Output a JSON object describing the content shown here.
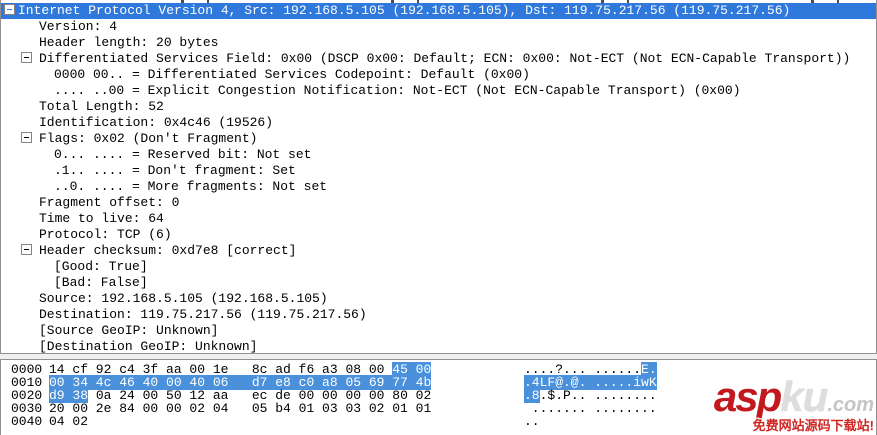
{
  "colors": {
    "selection_bg": "#2f78dc",
    "selection_fg": "#ffffff",
    "hex_highlight_bg": "#4a90da",
    "hex_highlight_fg": "#ffffff",
    "pane_border": "#909090",
    "watermark_red": "#c2191e"
  },
  "tree": {
    "rows": [
      {
        "depth": 0,
        "expanded": true,
        "selected": true,
        "text": "Internet Protocol Version 4, Src: 192.168.5.105 (192.168.5.105), Dst: 119.75.217.56 (119.75.217.56)"
      },
      {
        "depth": 1,
        "text": "Version: 4"
      },
      {
        "depth": 1,
        "text": "Header length: 20 bytes"
      },
      {
        "depth": 1,
        "expanded": true,
        "text": "Differentiated Services Field: 0x00 (DSCP 0x00: Default; ECN: 0x00: Not-ECT (Not ECN-Capable Transport))"
      },
      {
        "depth": 2,
        "text": "0000 00.. = Differentiated Services Codepoint: Default (0x00)"
      },
      {
        "depth": 2,
        "text": ".... ..00 = Explicit Congestion Notification: Not-ECT (Not ECN-Capable Transport) (0x00)"
      },
      {
        "depth": 1,
        "text": "Total Length: 52"
      },
      {
        "depth": 1,
        "text": "Identification: 0x4c46 (19526)"
      },
      {
        "depth": 1,
        "expanded": true,
        "text": "Flags: 0x02 (Don't Fragment)"
      },
      {
        "depth": 2,
        "text": "0... .... = Reserved bit: Not set"
      },
      {
        "depth": 2,
        "text": ".1.. .... = Don't fragment: Set"
      },
      {
        "depth": 2,
        "text": "..0. .... = More fragments: Not set"
      },
      {
        "depth": 1,
        "text": "Fragment offset: 0"
      },
      {
        "depth": 1,
        "text": "Time to live: 64"
      },
      {
        "depth": 1,
        "text": "Protocol: TCP (6)"
      },
      {
        "depth": 1,
        "expanded": true,
        "text": "Header checksum: 0xd7e8 [correct]"
      },
      {
        "depth": 2,
        "text": "[Good: True]"
      },
      {
        "depth": 2,
        "text": "[Bad: False]"
      },
      {
        "depth": 1,
        "text": "Source: 192.168.5.105 (192.168.5.105)"
      },
      {
        "depth": 1,
        "text": "Destination: 119.75.217.56 (119.75.217.56)"
      },
      {
        "depth": 1,
        "text": "[Source GeoIP: Unknown]"
      },
      {
        "depth": 1,
        "text": "[Destination GeoIP: Unknown]"
      }
    ]
  },
  "hex": {
    "rows": [
      {
        "offset": "0000",
        "h_pre": "14 cf 92 c4 3f aa 00 1e   8c ad f6 a3 08 00 ",
        "h_hl": "45 00",
        "h_post": "",
        "a_pre": "....?... ......",
        "a_hl": "E.",
        "a_post": ""
      },
      {
        "offset": "0010",
        "h_pre": "",
        "h_hl": "00 34 4c 46 40 00 40 06   d7 e8 c0 a8 05 69 77 4b",
        "h_post": "",
        "a_pre": "",
        "a_hl": ".4LF@.@. .....iwK",
        "a_post": ""
      },
      {
        "offset": "0020",
        "h_pre": "",
        "h_hl": "d9 38",
        "h_post": " 0a 24 00 50 12 aa   ec de 00 00 00 00 80 02",
        "a_pre": "",
        "a_hl": ".8",
        "a_post": ".$.P.. ........"
      },
      {
        "offset": "0030",
        "h_pre": "20 00 2e 84 00 00 02 04   05 b4 01 03 03 02 01 01",
        "h_hl": "",
        "h_post": "",
        "a_pre": " ....... ........",
        "a_hl": "",
        "a_post": ""
      },
      {
        "offset": "0040",
        "h_pre": "04 02",
        "h_hl": "",
        "h_post": "",
        "a_pre": "..",
        "a_hl": "",
        "a_post": ""
      }
    ]
  },
  "watermark": {
    "asp": "asp",
    "ku": "ku",
    "com": ".com",
    "sub": "免费网站源码下载站!"
  }
}
